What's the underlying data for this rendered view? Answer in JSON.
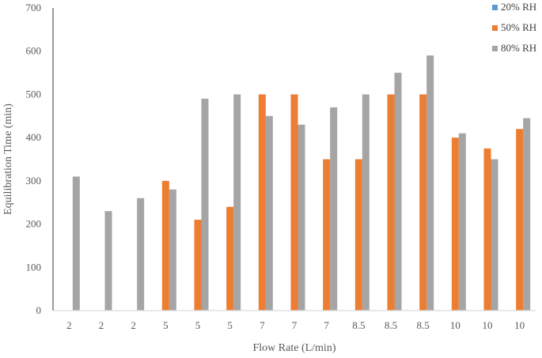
{
  "chart_data": {
    "type": "bar",
    "xlabel": "Flow Rate (L/min)",
    "ylabel": "Equilibration Time (min)",
    "ylim": [
      0,
      700
    ],
    "yticks": [
      0,
      100,
      200,
      300,
      400,
      500,
      600,
      700
    ],
    "grid": false,
    "legend_position": "top-right",
    "categories": [
      "2",
      "2",
      "2",
      "5",
      "5",
      "5",
      "7",
      "7",
      "7",
      "8.5",
      "8.5",
      "8.5",
      "10",
      "10",
      "10"
    ],
    "series": [
      {
        "name": "20% RH",
        "color": "#5b9bd5",
        "values": [
          0,
          0,
          0,
          0,
          0,
          0,
          0,
          0,
          0,
          0,
          0,
          0,
          0,
          0,
          0
        ]
      },
      {
        "name": "50% RH",
        "color": "#ed7d31",
        "values": [
          0,
          0,
          0,
          300,
          210,
          240,
          500,
          500,
          350,
          350,
          500,
          500,
          400,
          375,
          420
        ]
      },
      {
        "name": "80% RH",
        "color": "#a5a5a5",
        "values": [
          310,
          230,
          260,
          280,
          490,
          500,
          450,
          430,
          470,
          500,
          550,
          590,
          410,
          350,
          445
        ]
      }
    ]
  }
}
